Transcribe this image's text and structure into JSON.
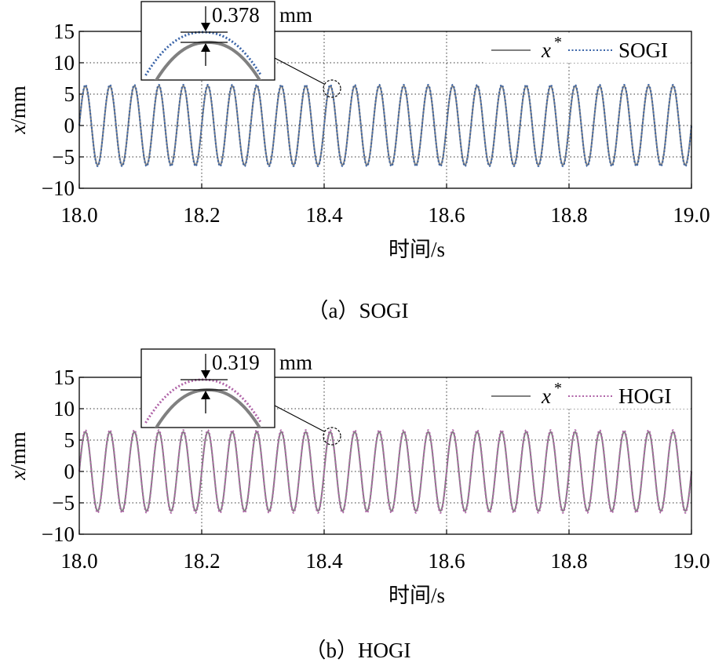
{
  "chart_data": [
    {
      "type": "line",
      "panel_label": "（a）SOGI",
      "xlabel": "时间/s",
      "ylabel": "x/mm",
      "xlim": [
        18.0,
        19.0
      ],
      "ylim": [
        -10,
        15
      ],
      "x_ticks": [
        "18.0",
        "18.2",
        "18.4",
        "18.6",
        "18.8",
        "19.0"
      ],
      "y_ticks": [
        "15",
        "10",
        "5",
        "0",
        "−5",
        "−10"
      ],
      "grid": "dotted",
      "legend_position": "top-right",
      "signal_frequency_hz": 25,
      "series": [
        {
          "name": "x*",
          "legend_symbol": "x",
          "legend_superscript": "*",
          "amplitude": 6.3,
          "style": "solid",
          "color": "#808080"
        },
        {
          "name": "SOGI",
          "legend_label": "SOGI",
          "amplitude": 6.5,
          "style": "dotted",
          "color": "#3a64a8"
        }
      ],
      "inset": {
        "annotation": "0.378",
        "unit": "mm",
        "peak_gap": 0.378,
        "zoom_center_x": 18.41
      }
    },
    {
      "type": "line",
      "panel_label": "（b）HOGI",
      "xlabel": "时间/s",
      "ylabel": "x/mm",
      "xlim": [
        18.0,
        19.0
      ],
      "ylim": [
        -10,
        15
      ],
      "x_ticks": [
        "18.0",
        "18.2",
        "18.4",
        "18.6",
        "18.8",
        "19.0"
      ],
      "y_ticks": [
        "15",
        "10",
        "5",
        "0",
        "−5",
        "−10"
      ],
      "grid": "dotted",
      "legend_position": "top-right",
      "signal_frequency_hz": 25,
      "series": [
        {
          "name": "x*",
          "legend_symbol": "x",
          "legend_superscript": "*",
          "amplitude": 6.3,
          "style": "solid",
          "color": "#808080"
        },
        {
          "name": "HOGI",
          "legend_label": "HOGI",
          "amplitude": 6.6,
          "style": "dotted",
          "color": "#b064a8"
        }
      ],
      "inset": {
        "annotation": "0.319",
        "unit": "mm",
        "peak_gap": 0.319,
        "zoom_center_x": 18.41
      }
    }
  ]
}
